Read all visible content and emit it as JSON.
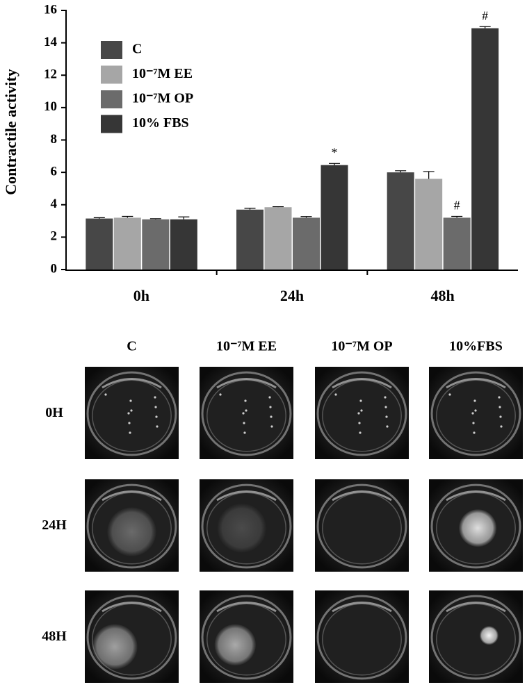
{
  "chart_data": {
    "type": "bar",
    "y_label": "Contractile activity",
    "categories": [
      "0h",
      "24h",
      "48h"
    ],
    "series": [
      {
        "name": "C",
        "color": "#474747",
        "values": [
          3.15,
          3.7,
          6.0
        ],
        "errors": [
          0.05,
          0.08,
          0.1
        ],
        "annotations": [
          null,
          null,
          null
        ]
      },
      {
        "name": "10⁻⁷M EE",
        "color": "#a6a6a6",
        "values": [
          3.2,
          3.85,
          5.6
        ],
        "errors": [
          0.08,
          0.03,
          0.45
        ],
        "annotations": [
          null,
          null,
          null
        ]
      },
      {
        "name": "10⁻⁷M OP",
        "color": "#6b6b6b",
        "values": [
          3.1,
          3.2,
          3.2
        ],
        "errors": [
          0.04,
          0.07,
          0.08
        ],
        "annotations": [
          null,
          null,
          "#"
        ]
      },
      {
        "name": "10% FBS",
        "color": "#363636",
        "values": [
          3.1,
          6.45,
          14.9
        ],
        "errors": [
          0.15,
          0.1,
          0.1
        ],
        "annotations": [
          null,
          "*",
          "#"
        ]
      }
    ],
    "ylim": [
      0,
      16
    ],
    "yticks": [
      0,
      2,
      4,
      6,
      8,
      10,
      12,
      14,
      16
    ],
    "grid": false,
    "legend": "upper left"
  },
  "image_grid": {
    "columns": [
      "C",
      "10⁻⁷M EE",
      "10⁻⁷M OP",
      "10%FBS"
    ],
    "rows": [
      "0H",
      "24H",
      "48H"
    ]
  }
}
